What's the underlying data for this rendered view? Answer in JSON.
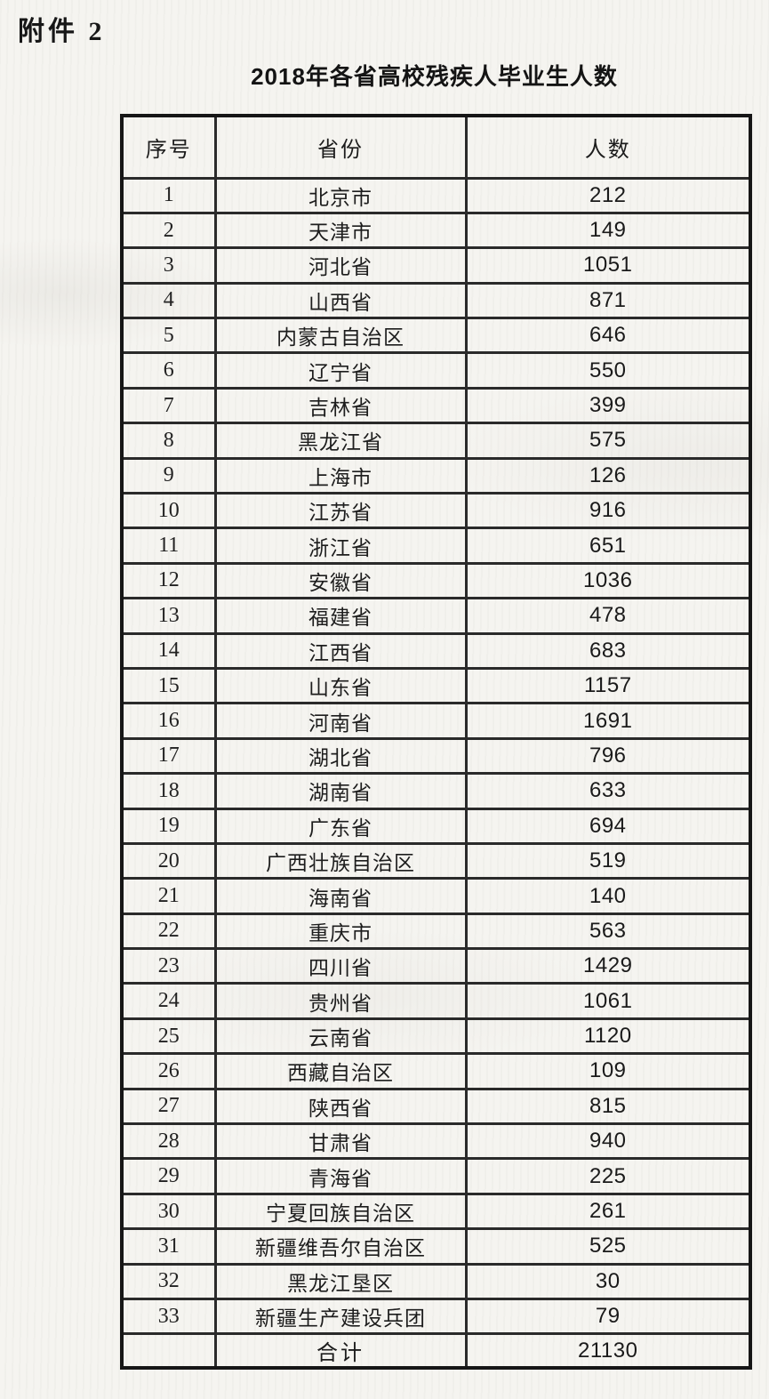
{
  "page": {
    "attachment_label": "附件 2",
    "title": "2018年各省高校残疾人毕业生人数"
  },
  "colors": {
    "paper": "#f5f4f0",
    "ink": "#1b1b1b",
    "table_line": "#2a2a2a"
  },
  "table": {
    "headers": {
      "index": "序号",
      "province": "省份",
      "count": "人数"
    },
    "rows": [
      {
        "index": "1",
        "province": "北京市",
        "count": "212"
      },
      {
        "index": "2",
        "province": "天津市",
        "count": "149"
      },
      {
        "index": "3",
        "province": "河北省",
        "count": "1051"
      },
      {
        "index": "4",
        "province": "山西省",
        "count": "871"
      },
      {
        "index": "5",
        "province": "内蒙古自治区",
        "count": "646"
      },
      {
        "index": "6",
        "province": "辽宁省",
        "count": "550"
      },
      {
        "index": "7",
        "province": "吉林省",
        "count": "399"
      },
      {
        "index": "8",
        "province": "黑龙江省",
        "count": "575"
      },
      {
        "index": "9",
        "province": "上海市",
        "count": "126"
      },
      {
        "index": "10",
        "province": "江苏省",
        "count": "916"
      },
      {
        "index": "11",
        "province": "浙江省",
        "count": "651"
      },
      {
        "index": "12",
        "province": "安徽省",
        "count": "1036"
      },
      {
        "index": "13",
        "province": "福建省",
        "count": "478"
      },
      {
        "index": "14",
        "province": "江西省",
        "count": "683"
      },
      {
        "index": "15",
        "province": "山东省",
        "count": "1157"
      },
      {
        "index": "16",
        "province": "河南省",
        "count": "1691"
      },
      {
        "index": "17",
        "province": "湖北省",
        "count": "796"
      },
      {
        "index": "18",
        "province": "湖南省",
        "count": "633"
      },
      {
        "index": "19",
        "province": "广东省",
        "count": "694"
      },
      {
        "index": "20",
        "province": "广西壮族自治区",
        "count": "519"
      },
      {
        "index": "21",
        "province": "海南省",
        "count": "140"
      },
      {
        "index": "22",
        "province": "重庆市",
        "count": "563"
      },
      {
        "index": "23",
        "province": "四川省",
        "count": "1429"
      },
      {
        "index": "24",
        "province": "贵州省",
        "count": "1061"
      },
      {
        "index": "25",
        "province": "云南省",
        "count": "1120"
      },
      {
        "index": "26",
        "province": "西藏自治区",
        "count": "109"
      },
      {
        "index": "27",
        "province": "陕西省",
        "count": "815"
      },
      {
        "index": "28",
        "province": "甘肃省",
        "count": "940"
      },
      {
        "index": "29",
        "province": "青海省",
        "count": "225"
      },
      {
        "index": "30",
        "province": "宁夏回族自治区",
        "count": "261"
      },
      {
        "index": "31",
        "province": "新疆维吾尔自治区",
        "count": "525"
      },
      {
        "index": "32",
        "province": "黑龙江垦区",
        "count": "30"
      },
      {
        "index": "33",
        "province": "新疆生产建设兵团",
        "count": "79"
      }
    ],
    "total": {
      "label": "合计",
      "count": "21130"
    }
  }
}
